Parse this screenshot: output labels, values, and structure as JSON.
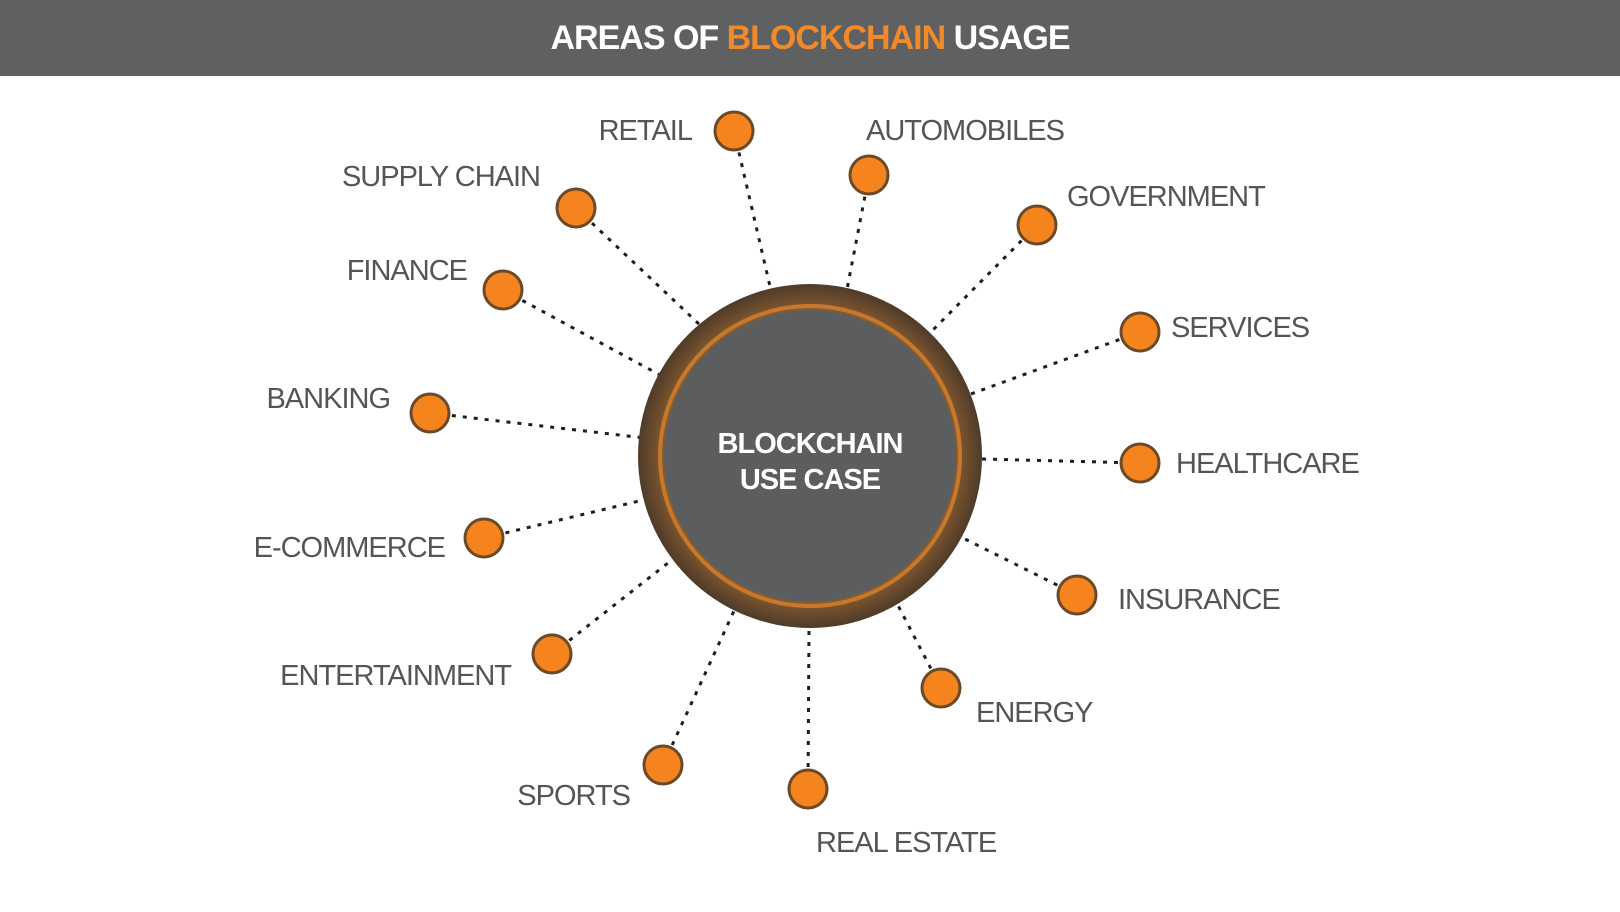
{
  "header": {
    "title_prefix": "AREAS OF ",
    "title_accent": "BLOCKCHAIN",
    "title_suffix": " USAGE"
  },
  "center": {
    "line1": "BLOCKCHAIN",
    "line2": "USE CASE"
  },
  "areas": [
    "RETAIL",
    "AUTOMOBILES",
    "GOVERNMENT",
    "SERVICES",
    "HEALTHCARE",
    "INSURANCE",
    "ENERGY",
    "REAL ESTATE",
    "SPORTS",
    "ENTERTAINMENT",
    "E-COMMERCE",
    "BANKING",
    "FINANCE",
    "SUPPLY CHAIN"
  ],
  "colors": {
    "header_bg": "#5f6062",
    "accent": "#f28a2a",
    "node_fill": "#f5841f",
    "center_fill": "#5c5d5f",
    "ring": "#6e5236"
  }
}
